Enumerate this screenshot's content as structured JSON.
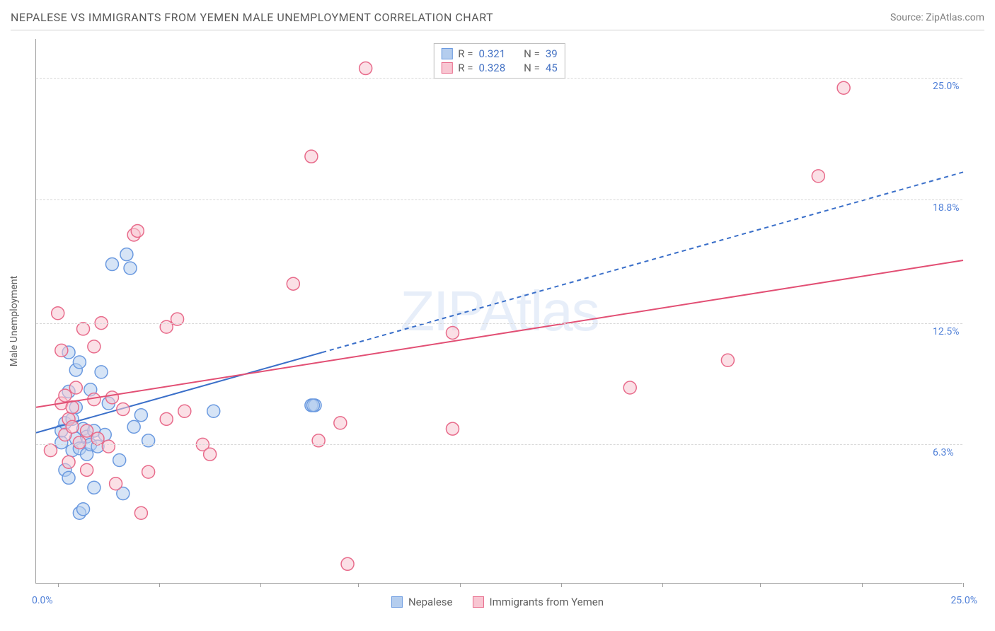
{
  "title": "NEPALESE VS IMMIGRANTS FROM YEMEN MALE UNEMPLOYMENT CORRELATION CHART",
  "source": "Source: ZipAtlas.com",
  "watermark": "ZIPAtlas",
  "y_axis_label": "Male Unemployment",
  "chart": {
    "type": "scatter",
    "xlim": [
      -0.6,
      25.0
    ],
    "ylim": [
      -0.8,
      27.0
    ],
    "y_ticks": [
      {
        "v": 6.3,
        "label": "6.3%"
      },
      {
        "v": 12.5,
        "label": "12.5%"
      },
      {
        "v": 18.8,
        "label": "18.8%"
      },
      {
        "v": 25.0,
        "label": "25.0%"
      }
    ],
    "x_tick_vs": [
      0,
      2.8,
      5.6,
      8.3,
      11.1,
      13.9,
      16.7,
      19.4,
      22.2,
      25.0
    ],
    "x_labels": {
      "min": "0.0%",
      "max": "25.0%"
    },
    "grid_color": "#d8d8d8",
    "marker_radius": 9,
    "marker_stroke_width": 1.5,
    "series": [
      {
        "name": "Nepalese",
        "fill": "#b4cdee",
        "stroke": "#6b9ae0",
        "fill_opacity": 0.55,
        "r": 0.321,
        "n": 39,
        "points": [
          [
            0.1,
            7.0
          ],
          [
            0.1,
            6.4
          ],
          [
            0.2,
            5.0
          ],
          [
            0.2,
            7.4
          ],
          [
            0.3,
            4.6
          ],
          [
            0.3,
            9.0
          ],
          [
            0.3,
            11.0
          ],
          [
            0.4,
            6.0
          ],
          [
            0.4,
            7.6
          ],
          [
            0.5,
            10.1
          ],
          [
            0.5,
            8.2
          ],
          [
            0.5,
            6.6
          ],
          [
            0.6,
            2.8
          ],
          [
            0.6,
            10.5
          ],
          [
            0.6,
            6.1
          ],
          [
            0.7,
            7.1
          ],
          [
            0.7,
            3.0
          ],
          [
            0.8,
            5.8
          ],
          [
            0.8,
            6.7
          ],
          [
            0.9,
            9.1
          ],
          [
            0.9,
            6.3
          ],
          [
            1.0,
            7.0
          ],
          [
            1.0,
            4.1
          ],
          [
            1.1,
            6.2
          ],
          [
            1.2,
            10.0
          ],
          [
            1.3,
            6.8
          ],
          [
            1.4,
            8.4
          ],
          [
            1.5,
            15.5
          ],
          [
            1.7,
            5.5
          ],
          [
            1.8,
            3.8
          ],
          [
            1.9,
            16.0
          ],
          [
            2.0,
            15.3
          ],
          [
            2.1,
            7.2
          ],
          [
            2.3,
            7.8
          ],
          [
            2.5,
            6.5
          ],
          [
            4.3,
            8.0
          ],
          [
            7.0,
            8.3
          ],
          [
            7.1,
            8.3
          ],
          [
            7.05,
            8.3
          ]
        ],
        "trend": {
          "x1": -0.6,
          "y1": 6.9,
          "x2": 7.3,
          "y2": 11.0,
          "solid": true
        },
        "trend_ext": {
          "x1": 7.3,
          "y1": 11.0,
          "x2": 25.0,
          "y2": 20.2,
          "solid": false
        },
        "line_color": "#3a6fc9",
        "line_width": 2
      },
      {
        "name": "Immigrants from Yemen",
        "fill": "#f8c6d2",
        "stroke": "#e86b8b",
        "fill_opacity": 0.55,
        "r": 0.328,
        "n": 45,
        "points": [
          [
            -0.2,
            6.0
          ],
          [
            0.0,
            13.0
          ],
          [
            0.1,
            8.4
          ],
          [
            0.1,
            11.1
          ],
          [
            0.2,
            6.8
          ],
          [
            0.2,
            8.8
          ],
          [
            0.3,
            5.4
          ],
          [
            0.3,
            7.6
          ],
          [
            0.4,
            7.2
          ],
          [
            0.4,
            8.2
          ],
          [
            0.5,
            9.2
          ],
          [
            0.6,
            6.4
          ],
          [
            0.7,
            12.2
          ],
          [
            0.8,
            7.0
          ],
          [
            0.8,
            5.0
          ],
          [
            1.0,
            11.3
          ],
          [
            1.0,
            8.6
          ],
          [
            1.1,
            6.6
          ],
          [
            1.2,
            12.5
          ],
          [
            1.4,
            6.2
          ],
          [
            1.5,
            8.7
          ],
          [
            1.6,
            4.3
          ],
          [
            1.8,
            8.1
          ],
          [
            2.1,
            17.0
          ],
          [
            2.2,
            17.2
          ],
          [
            2.3,
            2.8
          ],
          [
            2.5,
            4.9
          ],
          [
            3.0,
            12.3
          ],
          [
            3.0,
            7.6
          ],
          [
            3.3,
            12.7
          ],
          [
            3.5,
            8.0
          ],
          [
            4.0,
            6.3
          ],
          [
            4.2,
            5.8
          ],
          [
            6.5,
            14.5
          ],
          [
            7.0,
            21.0
          ],
          [
            7.2,
            6.5
          ],
          [
            7.8,
            7.4
          ],
          [
            8.0,
            0.2
          ],
          [
            8.5,
            25.5
          ],
          [
            10.9,
            12.0
          ],
          [
            10.9,
            7.1
          ],
          [
            15.8,
            9.2
          ],
          [
            18.5,
            10.6
          ],
          [
            21.0,
            20.0
          ],
          [
            21.7,
            24.5
          ]
        ],
        "trend": {
          "x1": -0.6,
          "y1": 8.2,
          "x2": 25.0,
          "y2": 15.7,
          "solid": true
        },
        "line_color": "#e24f74",
        "line_width": 2
      }
    ]
  },
  "legend_top": {
    "r_label": "R  =",
    "n_label": "N  ="
  },
  "colors": {
    "title_text": "#5a5a5a",
    "source_text": "#808080",
    "tick_text": "#5080d8"
  }
}
